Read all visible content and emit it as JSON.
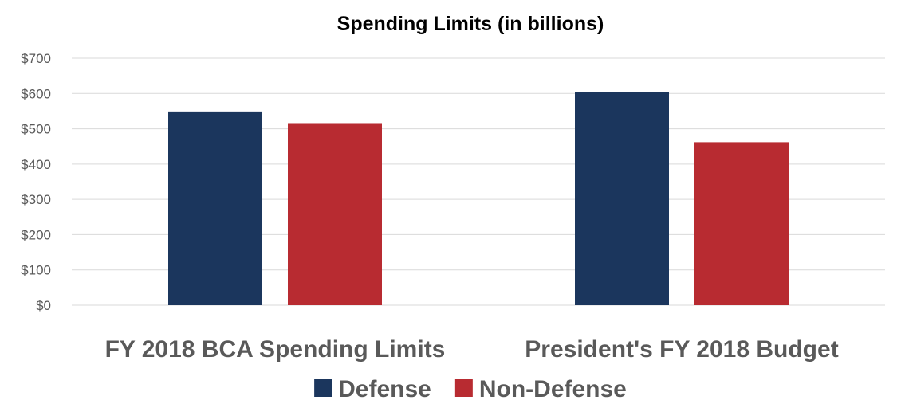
{
  "chart_data": {
    "type": "bar",
    "title": "Spending Limits (in billions)",
    "xlabel": "",
    "ylabel": "",
    "categories": [
      "FY 2018 BCA Spending Limits",
      "President's FY 2018 Budget"
    ],
    "series": [
      {
        "name": "Defense",
        "values": [
          549,
          603
        ],
        "color": "#1b365d"
      },
      {
        "name": "Non-Defense",
        "values": [
          516,
          462
        ],
        "color": "#b82b31"
      }
    ],
    "ylim": [
      0,
      700
    ],
    "yticks": [
      0,
      100,
      200,
      300,
      400,
      500,
      600,
      700
    ],
    "ytick_labels": [
      "$0",
      "$100",
      "$200",
      "$300",
      "$400",
      "$500",
      "$600",
      "$700"
    ],
    "grid": true,
    "legend": "bottom"
  }
}
